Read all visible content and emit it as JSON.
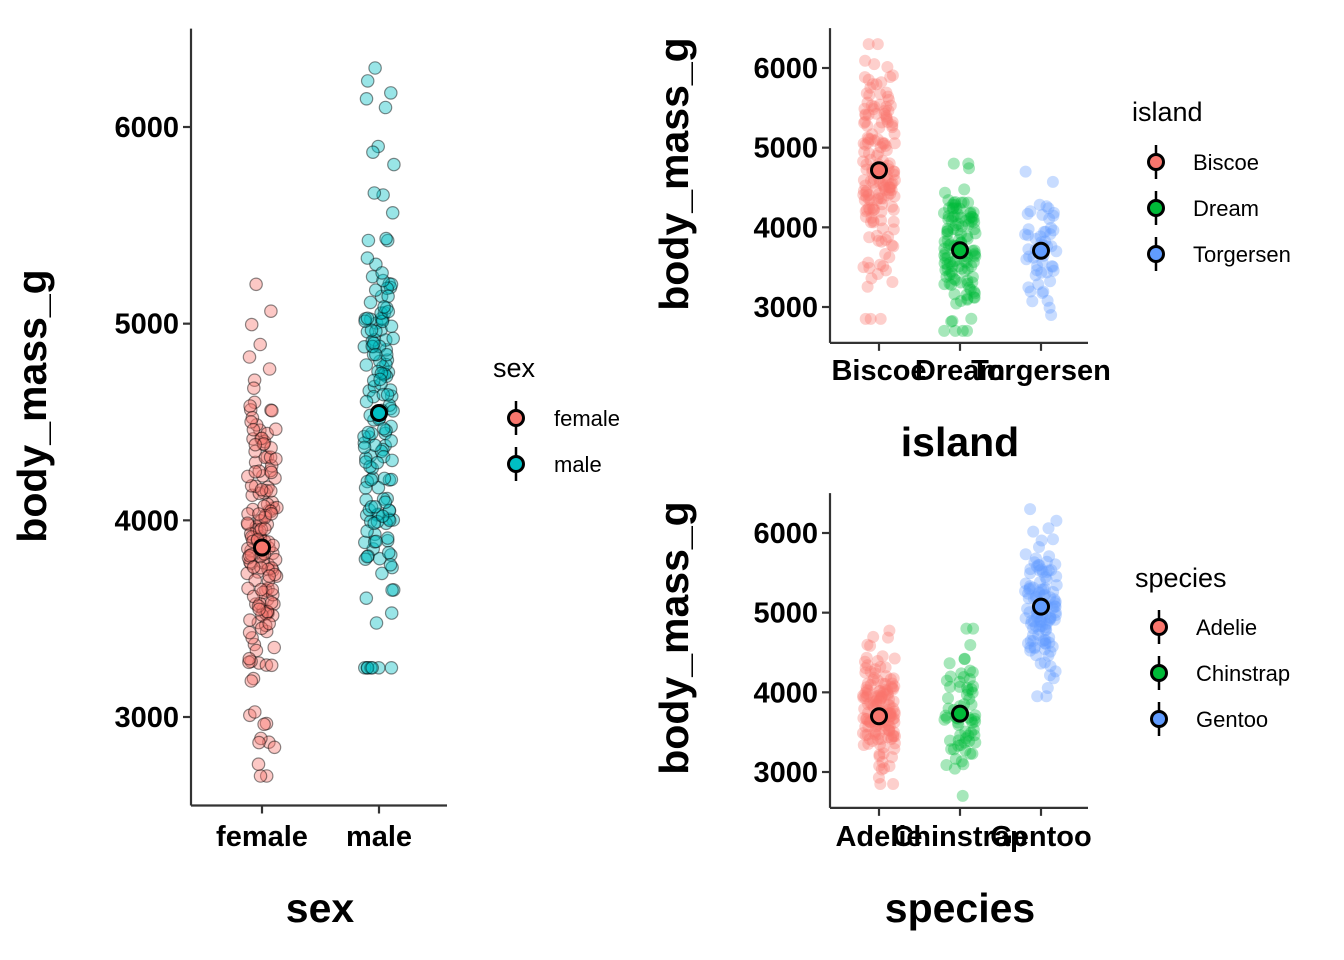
{
  "chart_data": [
    {
      "type": "scatter",
      "subtype": "jitter-strip-with-mean",
      "xlabel": "sex",
      "ylabel": "body_mass_g",
      "categories": [
        "female",
        "male"
      ],
      "colors": [
        "#F8766D",
        "#00BFC4"
      ],
      "point_alpha": 0.4,
      "point_stroke": "#000000",
      "ylim": [
        2550,
        6500
      ],
      "yticks": [
        "3000",
        "4000",
        "5000",
        "6000"
      ],
      "means": [
        3862,
        4546
      ],
      "ranges": [
        [
          2700,
          5200
        ],
        [
          3250,
          6300
        ]
      ],
      "point_counts": [
        165,
        168
      ],
      "legend": {
        "title": "sex",
        "entries": [
          "female",
          "male"
        ],
        "position": "right"
      }
    },
    {
      "type": "scatter",
      "subtype": "jitter-strip-with-mean",
      "xlabel": "island",
      "ylabel": "body_mass_g",
      "categories": [
        "Biscoe",
        "Dream",
        "Torgersen"
      ],
      "colors": [
        "#F8766D",
        "#00BA38",
        "#619CFF"
      ],
      "point_alpha": 0.35,
      "point_stroke": "none",
      "ylim": [
        2550,
        6500
      ],
      "yticks": [
        "3000",
        "4000",
        "5000",
        "6000"
      ],
      "means": [
        4716,
        3713,
        3706
      ],
      "ranges": [
        [
          2850,
          6300
        ],
        [
          2700,
          4800
        ],
        [
          2900,
          4700
        ]
      ],
      "point_counts": [
        168,
        124,
        52
      ],
      "legend": {
        "title": "island",
        "entries": [
          "Biscoe",
          "Dream",
          "Torgersen"
        ],
        "position": "right"
      }
    },
    {
      "type": "scatter",
      "subtype": "jitter-strip-with-mean",
      "xlabel": "species",
      "ylabel": "body_mass_g",
      "categories": [
        "Adelie",
        "Chinstrap",
        "Gentoo"
      ],
      "colors": [
        "#F8766D",
        "#00BA38",
        "#619CFF"
      ],
      "point_alpha": 0.35,
      "point_stroke": "none",
      "ylim": [
        2550,
        6500
      ],
      "yticks": [
        "3000",
        "4000",
        "5000",
        "6000"
      ],
      "means": [
        3701,
        3733,
        5076
      ],
      "ranges": [
        [
          2850,
          4775
        ],
        [
          2700,
          4800
        ],
        [
          3950,
          6300
        ]
      ],
      "point_counts": [
        151,
        68,
        123
      ],
      "legend": {
        "title": "species",
        "entries": [
          "Adelie",
          "Chinstrap",
          "Gentoo"
        ],
        "position": "right"
      }
    }
  ]
}
